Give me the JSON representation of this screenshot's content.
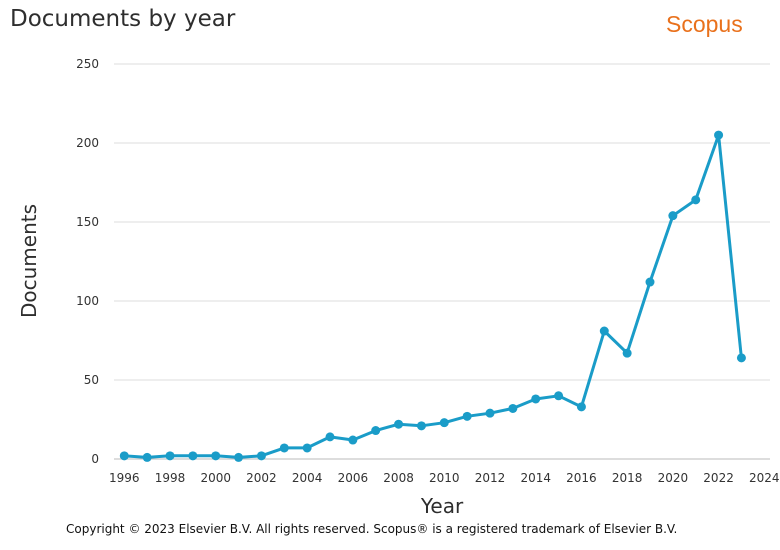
{
  "header": {
    "title": "Documents by year",
    "brand": "Scopus"
  },
  "footer": {
    "copyright": "Copyright © 2023 Elsevier B.V. All rights reserved. Scopus® is a registered trademark of Elsevier B.V."
  },
  "colors": {
    "line": "#1a9cc8",
    "brand": "#e9711c",
    "grid": "#dddddd",
    "text": "#2e2e2e"
  },
  "chart_data": {
    "type": "line",
    "title": "Documents by year",
    "xlabel": "Year",
    "ylabel": "Documents",
    "x": [
      1996,
      1997,
      1998,
      1999,
      2000,
      2001,
      2002,
      2003,
      2004,
      2005,
      2006,
      2007,
      2008,
      2009,
      2010,
      2011,
      2012,
      2013,
      2014,
      2015,
      2016,
      2017,
      2018,
      2019,
      2020,
      2021,
      2022,
      2023
    ],
    "series": [
      {
        "values": [
          2,
          1,
          2,
          2,
          2,
          1,
          2,
          7,
          7,
          14,
          12,
          18,
          22,
          21,
          23,
          27,
          29,
          32,
          38,
          40,
          33,
          81,
          67,
          112,
          154,
          164,
          205,
          64
        ]
      }
    ],
    "ylim": [
      0,
      250
    ],
    "yticks": [
      0,
      50,
      100,
      150,
      200,
      250
    ],
    "xlim": [
      1996,
      2024
    ],
    "xticks": [
      1996,
      1998,
      2000,
      2002,
      2004,
      2006,
      2008,
      2010,
      2012,
      2014,
      2016,
      2018,
      2020,
      2022,
      2024
    ],
    "grid": "horizontal",
    "legend": "none"
  }
}
